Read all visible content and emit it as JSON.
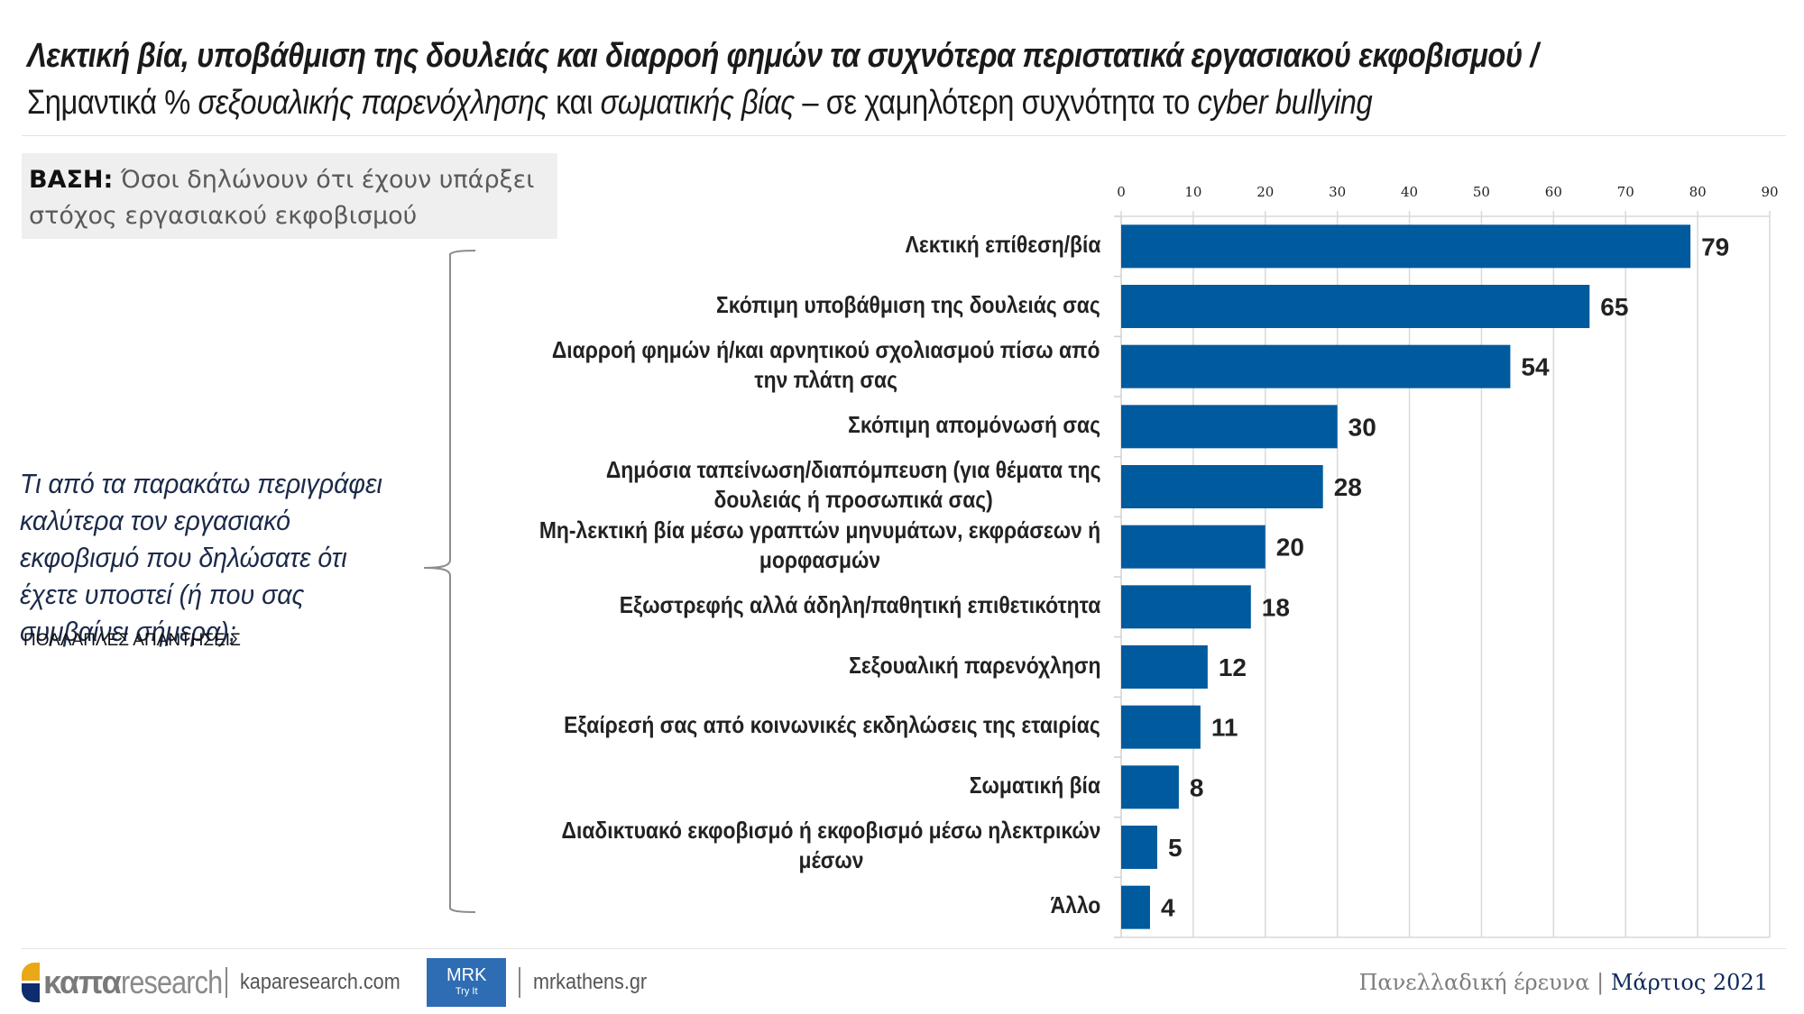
{
  "header": {
    "title_bold_italic": "Λεκτική βία, υποβάθμιση της δουλειάς και διαρροή φημών τα συχνότερα περιστατικά εργασιακού εκφοβισμού /",
    "subtitle_parts": [
      {
        "text": "Σημαντικά % ",
        "italic": false
      },
      {
        "text": "σεξουαλικής παρενόχλησης",
        "italic": true
      },
      {
        "text": " και ",
        "italic": false
      },
      {
        "text": "σωματικής βίας",
        "italic": true
      },
      {
        "text": " – σε χαμηλότερη συχνότητα το ",
        "italic": false
      },
      {
        "text": "cyber bullying",
        "italic": true
      }
    ]
  },
  "base": {
    "label": "ΒΑΣΗ:",
    "text": " Όσοι δηλώνουν ότι έχουν υπάρξει στόχος εργασιακού εκφοβισμού"
  },
  "question": {
    "text": "Τι από τα παρακάτω περιγράφει καλύτερα τον εργασιακό εκφοβισμό που δηλώσατε ότι έχετε υποστεί (ή που σας συμβαίνει σήμερα);",
    "note": "ΠΟΛΛΑΠΛΕΣ ΑΠΑΝΤΗΣΕΙΣ"
  },
  "chart_data": {
    "type": "bar",
    "orientation": "horizontal",
    "title": "",
    "xlabel": "",
    "ylabel": "",
    "xlim": [
      0,
      90
    ],
    "xticks": [
      0,
      10,
      20,
      30,
      40,
      50,
      60,
      70,
      80,
      90
    ],
    "axis_position": "top",
    "grid": true,
    "bar_color": "#005a9e",
    "categories": [
      [
        "Λεκτική επίθεση/βία"
      ],
      [
        "Σκόπιμη υποβάθμιση της δουλειάς σας"
      ],
      [
        "Διαρροή φημών ή/και αρνητικού σχολιασμού πίσω από",
        "την πλάτη σας"
      ],
      [
        "Σκόπιμη απομόνωσή σας"
      ],
      [
        "Δημόσια ταπείνωση/διαπόμπευση (για θέματα της",
        "δουλειάς ή προσωπικά σας)"
      ],
      [
        "Μη-λεκτική βία μέσω γραπτών μηνυμάτων, εκφράσεων ή",
        "μορφασμών"
      ],
      [
        "Εξωστρεφής αλλά άδηλη/παθητική επιθετικότητα"
      ],
      [
        "Σεξουαλική παρενόχληση"
      ],
      [
        "Εξαίρεσή σας από κοινωνικές εκδηλώσεις της εταιρίας"
      ],
      [
        "Σωματική βία"
      ],
      [
        "Διαδικτυακό εκφοβισμό ή εκφοβισμό μέσω ηλεκτρικών",
        "μέσων"
      ],
      [
        "Άλλο"
      ]
    ],
    "values": [
      79,
      65,
      54,
      30,
      28,
      20,
      18,
      12,
      11,
      8,
      5,
      4
    ],
    "data_labels": [
      "79",
      "65",
      "54",
      "30",
      "28",
      "20",
      "18",
      "12",
      "11",
      "8",
      "5",
      "4"
    ]
  },
  "footer": {
    "logo_bold": "καπα",
    "logo_light": "research",
    "kapa_link": "kaparesearch.com",
    "mrk_title": "MRK",
    "mrk_sub": "Try It",
    "mrk_link": "mrkathens.gr",
    "survey": "Πανελλαδική έρευνα",
    "separator": " | ",
    "date": "Μάρτιος 2021"
  }
}
